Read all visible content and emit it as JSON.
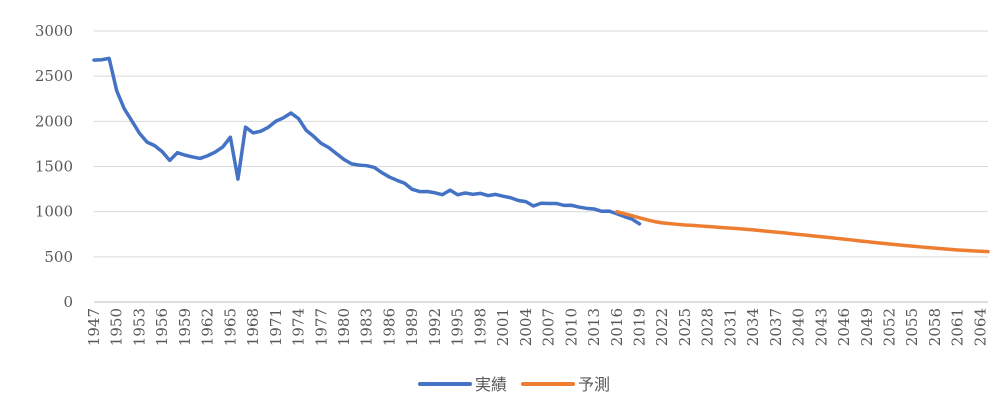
{
  "chart_data": {
    "type": "line",
    "title": "",
    "xlabel": "",
    "ylabel": "",
    "ylim": [
      0,
      3000
    ],
    "yticks": [
      0,
      500,
      1000,
      1500,
      2000,
      2500,
      3000
    ],
    "xlim": [
      1947,
      2065
    ],
    "xticks": [
      "1947",
      "1950",
      "1953",
      "1956",
      "1959",
      "1962",
      "1965",
      "1968",
      "1971",
      "1974",
      "1977",
      "1980",
      "1983",
      "1986",
      "1989",
      "1992",
      "1995",
      "1998",
      "2001",
      "2004",
      "2007",
      "2010",
      "2013",
      "2016",
      "2019",
      "2022",
      "2025",
      "2028",
      "2031",
      "2034",
      "2037",
      "2040",
      "2043",
      "2046",
      "2049",
      "2052",
      "2055",
      "2058",
      "2061",
      "2064"
    ],
    "grid": "horizontal",
    "legend": "bottom",
    "series": [
      {
        "name": "実績",
        "color": "#4472C4",
        "points": [
          [
            1947,
            2678
          ],
          [
            1948,
            2682
          ],
          [
            1949,
            2697
          ],
          [
            1950,
            2338
          ],
          [
            1951,
            2138
          ],
          [
            1952,
            2005
          ],
          [
            1953,
            1868
          ],
          [
            1954,
            1770
          ],
          [
            1955,
            1731
          ],
          [
            1956,
            1665
          ],
          [
            1957,
            1567
          ],
          [
            1958,
            1653
          ],
          [
            1959,
            1626
          ],
          [
            1960,
            1606
          ],
          [
            1961,
            1589
          ],
          [
            1962,
            1619
          ],
          [
            1963,
            1660
          ],
          [
            1964,
            1717
          ],
          [
            1965,
            1824
          ],
          [
            1966,
            1361
          ],
          [
            1967,
            1936
          ],
          [
            1968,
            1872
          ],
          [
            1969,
            1890
          ],
          [
            1970,
            1934
          ],
          [
            1971,
            2001
          ],
          [
            1972,
            2039
          ],
          [
            1973,
            2092
          ],
          [
            1974,
            2030
          ],
          [
            1975,
            1901
          ],
          [
            1976,
            1833
          ],
          [
            1977,
            1755
          ],
          [
            1978,
            1709
          ],
          [
            1979,
            1643
          ],
          [
            1980,
            1577
          ],
          [
            1981,
            1529
          ],
          [
            1982,
            1515
          ],
          [
            1983,
            1509
          ],
          [
            1984,
            1490
          ],
          [
            1985,
            1432
          ],
          [
            1986,
            1383
          ],
          [
            1987,
            1347
          ],
          [
            1988,
            1314
          ],
          [
            1989,
            1247
          ],
          [
            1990,
            1222
          ],
          [
            1991,
            1223
          ],
          [
            1992,
            1209
          ],
          [
            1993,
            1188
          ],
          [
            1994,
            1238
          ],
          [
            1995,
            1187
          ],
          [
            1996,
            1207
          ],
          [
            1997,
            1192
          ],
          [
            1998,
            1203
          ],
          [
            1999,
            1178
          ],
          [
            2000,
            1191
          ],
          [
            2001,
            1171
          ],
          [
            2002,
            1154
          ],
          [
            2003,
            1124
          ],
          [
            2004,
            1111
          ],
          [
            2005,
            1063
          ],
          [
            2006,
            1093
          ],
          [
            2007,
            1090
          ],
          [
            2008,
            1091
          ],
          [
            2009,
            1070
          ],
          [
            2010,
            1071
          ],
          [
            2011,
            1051
          ],
          [
            2012,
            1037
          ],
          [
            2013,
            1030
          ],
          [
            2014,
            1004
          ],
          [
            2015,
            1006
          ],
          [
            2016,
            977
          ],
          [
            2017,
            946
          ],
          [
            2018,
            918
          ],
          [
            2019,
            865
          ]
        ]
      },
      {
        "name": "予測",
        "color": "#ED7D31",
        "points": [
          [
            2016,
            1000
          ],
          [
            2017,
            977
          ],
          [
            2018,
            955
          ],
          [
            2019,
            932
          ],
          [
            2020,
            910
          ],
          [
            2021,
            890
          ],
          [
            2022,
            876
          ],
          [
            2023,
            868
          ],
          [
            2024,
            860
          ],
          [
            2025,
            853
          ],
          [
            2026,
            848
          ],
          [
            2027,
            842
          ],
          [
            2028,
            836
          ],
          [
            2029,
            830
          ],
          [
            2030,
            824
          ],
          [
            2031,
            818
          ],
          [
            2032,
            812
          ],
          [
            2033,
            805
          ],
          [
            2034,
            798
          ],
          [
            2035,
            790
          ],
          [
            2036,
            782
          ],
          [
            2037,
            774
          ],
          [
            2038,
            766
          ],
          [
            2039,
            757
          ],
          [
            2040,
            748
          ],
          [
            2041,
            740
          ],
          [
            2042,
            731
          ],
          [
            2043,
            722
          ],
          [
            2044,
            714
          ],
          [
            2045,
            705
          ],
          [
            2046,
            696
          ],
          [
            2047,
            687
          ],
          [
            2048,
            677
          ],
          [
            2049,
            668
          ],
          [
            2050,
            659
          ],
          [
            2051,
            650
          ],
          [
            2052,
            642
          ],
          [
            2053,
            634
          ],
          [
            2054,
            626
          ],
          [
            2055,
            619
          ],
          [
            2056,
            611
          ],
          [
            2057,
            603
          ],
          [
            2058,
            596
          ],
          [
            2059,
            589
          ],
          [
            2060,
            582
          ],
          [
            2061,
            576
          ],
          [
            2062,
            571
          ],
          [
            2063,
            566
          ],
          [
            2064,
            562
          ],
          [
            2065,
            558
          ]
        ]
      }
    ]
  }
}
